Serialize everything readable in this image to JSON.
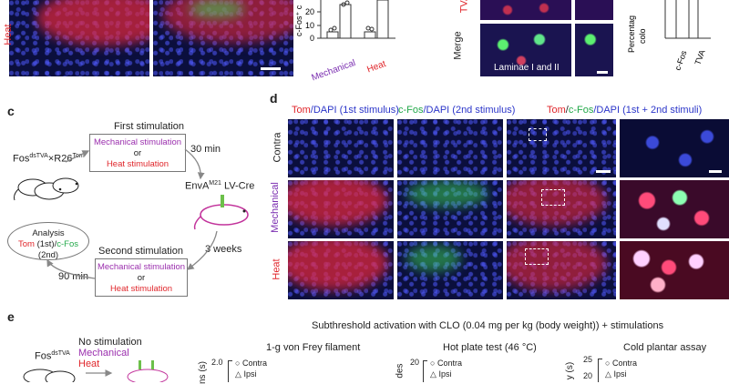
{
  "panel_letters": {
    "c": "c",
    "d": "d",
    "e": "e"
  },
  "top": {
    "heat_label": "Heat",
    "bar_ylabel": "c-Fos⁺ c",
    "bar_ticks": [
      "0",
      "10",
      "20"
    ],
    "bar_xlabels": [
      "Mechanical",
      "Heat"
    ],
    "tva_label": "TVA",
    "merge_label": "Merge",
    "laminae_label": "Laminae I and II",
    "right_ylabel_1": "Percentag",
    "right_ylabel_2": "colo",
    "right_xlabels": [
      "c-Fos",
      "TVA"
    ]
  },
  "c": {
    "mouse_label_base": "Fos",
    "mouse_label_sup1": "dsTVA",
    "mouse_label_mid": "×R26",
    "mouse_label_sup2": "Tom",
    "first_title": "First stimulation",
    "first_opt1": "Mechanical stimulation",
    "first_or": "or",
    "first_opt2": "Heat stimulation",
    "wait1": "30 min",
    "virus_base": "EnvA",
    "virus_sup": "M21",
    "virus_rest": " LV-Cre",
    "wait2": "3 weeks",
    "second_title": "Second stimulation",
    "second_opt1": "Mechanical stimulation",
    "second_or": "or",
    "second_opt2": "Heat stimulation",
    "wait3": "90 min",
    "analysis_title": "Analysis",
    "analysis_tom": "Tom",
    "analysis_tom_rest": " (1st)/",
    "analysis_cfos": "c-Fos",
    "analysis_cfos_rest": " (2nd)"
  },
  "d": {
    "header1_tom": "Tom",
    "header1_rest": "/DAPI (1st stimulus)",
    "header2_cfos": "c-Fos",
    "header2_rest": "/DAPI (2nd stimulus)",
    "header3_tom": "Tom",
    "header3_sep": "/",
    "header3_cfos": "c-Fos",
    "header3_rest": "/DAPI (1st + 2nd stimuli)",
    "row_labels": [
      "Contra",
      "Mechanical",
      "Heat"
    ]
  },
  "e": {
    "mouse_label_base": "Fos",
    "mouse_label_sup": "dsTVA",
    "cond1": "No stimulation",
    "cond2": "Mechanical",
    "cond3": "Heat",
    "main_title": "Subthreshold activation with CLO (0.04 mg per kg (body weight)) + stimulations",
    "test1": "1-g von Frey filament",
    "test2": "Hot plate test (46 °C)",
    "test3": "Cold plantar assay",
    "test1_ylabel": "ns (s)",
    "test1_ytick": "2.0",
    "test2_ylabel": "des",
    "test2_ytick": "20",
    "test3_ylabel": "y (s)",
    "test3_ytick": "25",
    "test3_ytick2": "20",
    "legend_contra": "Contra",
    "legend_ipsi": "Ipsi"
  }
}
